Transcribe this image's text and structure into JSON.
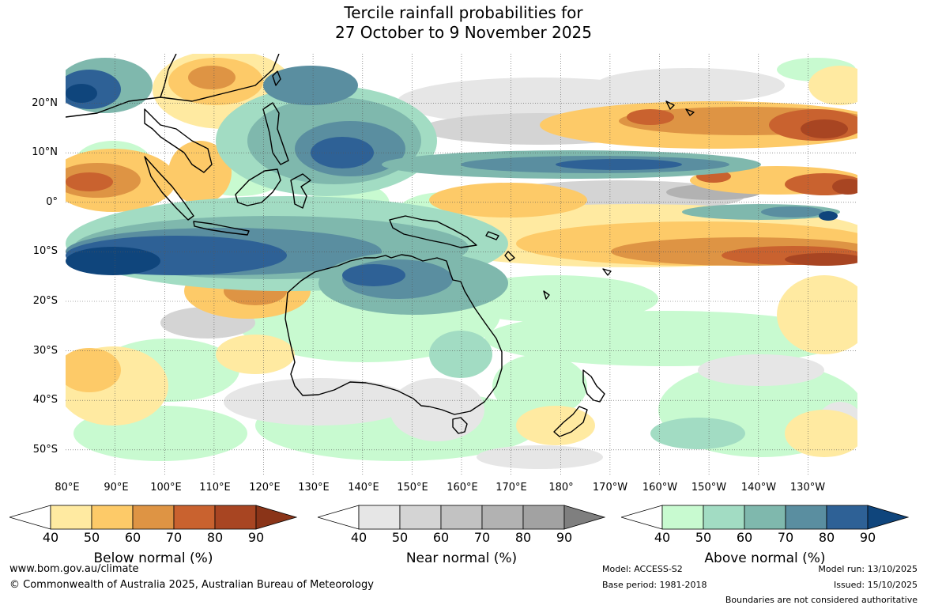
{
  "title": {
    "line1": "Tercile rainfall probabilities for",
    "line2": "27 October to 9 November 2025"
  },
  "map": {
    "latitude_labels": [
      "20°N",
      "10°N",
      "0°",
      "10°S",
      "20°S",
      "30°S",
      "40°S",
      "50°S"
    ],
    "longitude_labels": [
      "80°E",
      "90°E",
      "100°E",
      "110°E",
      "120°E",
      "130°E",
      "140°E",
      "150°E",
      "160°E",
      "170°E",
      "180°",
      "170°W",
      "160°W",
      "150°W",
      "140°W",
      "130°W"
    ],
    "lat_range": [
      -55,
      30
    ],
    "lon_range": [
      80,
      240
    ]
  },
  "legends": {
    "below": {
      "title": "Below normal (%)",
      "ticks": [
        "40",
        "50",
        "60",
        "70",
        "80",
        "90"
      ],
      "colors": [
        "#ffffff",
        "#ffeaa1",
        "#fdca68",
        "#de9444",
        "#c9622f",
        "#a84522",
        "#8a3418"
      ]
    },
    "near": {
      "title": "Near normal (%)",
      "ticks": [
        "40",
        "50",
        "60",
        "70",
        "80",
        "90"
      ],
      "colors": [
        "#ffffff",
        "#e6e6e6",
        "#d4d4d4",
        "#c2c2c2",
        "#b2b2b2",
        "#a2a2a2",
        "#7f7f7f"
      ]
    },
    "above": {
      "title": "Above normal (%)",
      "ticks": [
        "40",
        "50",
        "60",
        "70",
        "80",
        "90"
      ],
      "colors": [
        "#ffffff",
        "#c8fad0",
        "#a2dcc3",
        "#7fb8ad",
        "#5a8ea0",
        "#2e6196",
        "#0f457c"
      ]
    }
  },
  "footer": {
    "url": "www.bom.gov.au/climate",
    "copyright": "© Commonwealth of Australia 2025, Australian Bureau of Meteorology",
    "model": "Model: ACCESS-S2",
    "base_period": "Base period: 1981-2018",
    "model_run": "Model run: 13/10/2025",
    "issued": "Issued: 15/10/2025",
    "boundaries": "Boundaries are not considered authoritative"
  }
}
